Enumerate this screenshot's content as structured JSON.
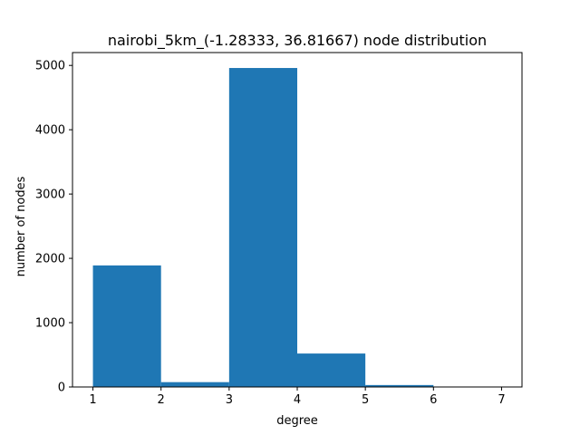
{
  "chart_data": {
    "type": "bar",
    "title": "nairobi_5km_(-1.28333, 36.81667) node distribution",
    "xlabel": "degree",
    "ylabel": "number of nodes",
    "bins": [
      {
        "x0": 1,
        "x1": 2,
        "value": 1890
      },
      {
        "x0": 2,
        "x1": 3,
        "value": 75
      },
      {
        "x0": 3,
        "x1": 4,
        "value": 4960
      },
      {
        "x0": 4,
        "x1": 5,
        "value": 520
      },
      {
        "x0": 5,
        "x1": 6,
        "value": 30
      },
      {
        "x0": 6,
        "x1": 7,
        "value": 4
      }
    ],
    "xlim": [
      0.7,
      7.3
    ],
    "ylim": [
      0,
      5200
    ],
    "xticks": [
      1,
      2,
      3,
      4,
      5,
      6,
      7
    ],
    "yticks": [
      0,
      1000,
      2000,
      3000,
      4000,
      5000
    ],
    "grid": false,
    "bar_color": "#1f77b4"
  }
}
